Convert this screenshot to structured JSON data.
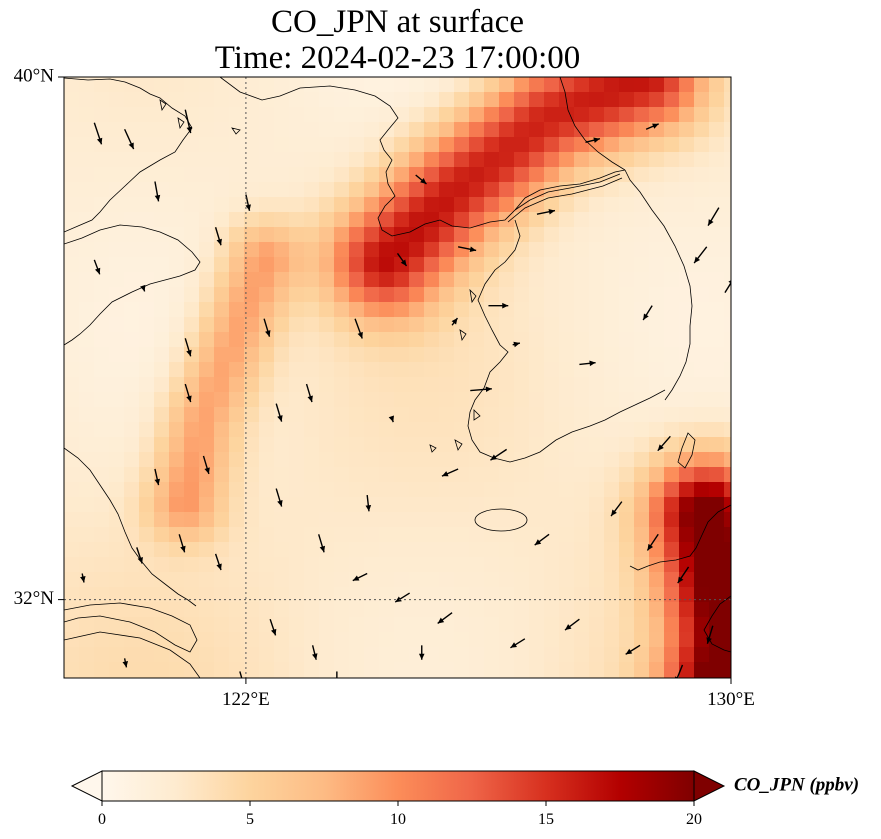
{
  "title": {
    "line1": "CO_JPN at surface",
    "line2": "Time: 2024-02-23 17:00:00"
  },
  "map": {
    "extent": {
      "lon_min": 119.0,
      "lon_max": 130.0,
      "lat_min": 30.8,
      "lat_max": 40.0
    },
    "gridlines": {
      "lon": [
        122
      ],
      "lat": [
        32
      ],
      "style": "dotted"
    },
    "x_ticks": [
      {
        "value": 122,
        "label": "122°E"
      },
      {
        "value": 130,
        "label": "130°E"
      }
    ],
    "y_ticks": [
      {
        "value": 40,
        "label": "40°N"
      },
      {
        "value": 32,
        "label": "32°N"
      }
    ],
    "coastline_color": "#000000"
  },
  "chart_data": {
    "type": "heatmap",
    "variable": "CO_JPN (ppbv)",
    "colormap": "OrRd",
    "vmin": 0,
    "vmax": 20,
    "plumes": [
      {
        "name": "northeast-plume",
        "path": [
          [
            124.3,
            37.2
          ],
          [
            125.5,
            38.3
          ],
          [
            127.0,
            39.4
          ],
          [
            128.6,
            40.0
          ]
        ],
        "peak": 14
      },
      {
        "name": "yellow-sea-streak",
        "path": [
          [
            121.0,
            33.5
          ],
          [
            121.3,
            34.8
          ],
          [
            121.8,
            36.0
          ],
          [
            122.3,
            37.2
          ]
        ],
        "peak": 7
      },
      {
        "name": "southeast-edge",
        "path": [
          [
            129.6,
            33.3
          ],
          [
            129.8,
            32.5
          ],
          [
            130.0,
            31.5
          ],
          [
            129.9,
            30.8
          ]
        ],
        "peak": 19
      }
    ],
    "wind_vectors_lonlat_uv": [
      [
        119.5,
        39.3,
        0.4,
        -1.2
      ],
      [
        120.0,
        39.2,
        0.5,
        -1.1
      ],
      [
        121.0,
        39.5,
        0.3,
        -1.3
      ],
      [
        120.5,
        38.4,
        0.2,
        -1.1
      ],
      [
        121.5,
        37.7,
        0.3,
        -1.0
      ],
      [
        119.5,
        37.2,
        0.3,
        -0.8
      ],
      [
        121.0,
        36.0,
        0.3,
        -1.0
      ],
      [
        122.3,
        36.3,
        0.3,
        -1.0
      ],
      [
        123.0,
        35.3,
        0.3,
        -1.0
      ],
      [
        123.8,
        36.3,
        0.4,
        -1.1
      ],
      [
        124.5,
        37.3,
        0.5,
        -0.7
      ],
      [
        124.8,
        38.5,
        0.6,
        -0.5
      ],
      [
        125.5,
        37.4,
        1.0,
        -0.2
      ],
      [
        126.0,
        36.5,
        1.1,
        0.0
      ],
      [
        125.7,
        35.2,
        1.2,
        0.1
      ],
      [
        126.8,
        37.9,
        1.0,
        0.2
      ],
      [
        127.6,
        39.0,
        0.8,
        0.2
      ],
      [
        128.6,
        39.2,
        0.7,
        0.3
      ],
      [
        129.6,
        37.4,
        -0.7,
        -0.9
      ],
      [
        129.8,
        38.0,
        -0.6,
        -1.0
      ],
      [
        128.7,
        36.5,
        -0.5,
        -0.8
      ],
      [
        129.9,
        36.7,
        0.5,
        0.8
      ],
      [
        127.5,
        35.6,
        0.9,
        0.1
      ],
      [
        129.0,
        34.5,
        -0.7,
        -0.8
      ],
      [
        128.2,
        33.5,
        -0.6,
        -0.8
      ],
      [
        128.8,
        33.0,
        -0.6,
        -0.9
      ],
      [
        129.3,
        32.5,
        -0.6,
        -0.9
      ],
      [
        127.0,
        33.0,
        -0.8,
        -0.6
      ],
      [
        126.3,
        34.3,
        -0.9,
        -0.6
      ],
      [
        125.5,
        34.0,
        -0.9,
        -0.4
      ],
      [
        124.0,
        32.4,
        -0.8,
        -0.4
      ],
      [
        124.7,
        32.1,
        -0.8,
        -0.5
      ],
      [
        125.4,
        31.8,
        -0.8,
        -0.6
      ],
      [
        126.6,
        31.4,
        -0.8,
        -0.5
      ],
      [
        127.5,
        31.7,
        -0.8,
        -0.6
      ],
      [
        128.5,
        31.3,
        -0.8,
        -0.5
      ],
      [
        129.2,
        31.0,
        -0.4,
        -1.0
      ],
      [
        129.7,
        31.6,
        -0.3,
        -1.0
      ],
      [
        119.3,
        32.4,
        0.1,
        -0.5
      ],
      [
        120.2,
        32.8,
        0.3,
        -0.9
      ],
      [
        120.9,
        33.0,
        0.3,
        -1.0
      ],
      [
        121.5,
        32.7,
        0.3,
        -0.9
      ],
      [
        122.5,
        33.7,
        0.3,
        -1.0
      ],
      [
        123.2,
        33.0,
        0.3,
        -1.0
      ],
      [
        124.0,
        33.6,
        0.1,
        -0.9
      ],
      [
        122.4,
        31.7,
        0.3,
        -0.9
      ],
      [
        123.1,
        31.3,
        0.2,
        -0.8
      ],
      [
        124.9,
        31.3,
        0.0,
        -0.8
      ],
      [
        123.5,
        30.9,
        0.0,
        -0.8
      ],
      [
        121.9,
        30.9,
        0.2,
        -0.7
      ],
      [
        120.0,
        31.1,
        0.1,
        -0.5
      ],
      [
        120.5,
        34.0,
        0.2,
        -0.9
      ],
      [
        121.3,
        34.2,
        0.3,
        -1.0
      ],
      [
        122.5,
        35.0,
        0.3,
        -1.0
      ],
      [
        121.0,
        35.3,
        0.3,
        -1.0
      ],
      [
        122.0,
        38.2,
        0.2,
        -0.9
      ],
      [
        120.3,
        36.8,
        0.1,
        -0.3
      ],
      [
        124.4,
        34.8,
        0.1,
        -0.3
      ],
      [
        126.4,
        35.9,
        0.4,
        0.1
      ],
      [
        125.4,
        36.2,
        0.3,
        0.4
      ]
    ]
  },
  "colorbar": {
    "label": "CO_JPN (ppbv)",
    "ticks": [
      0,
      5,
      10,
      15,
      20
    ],
    "extend": "both"
  }
}
